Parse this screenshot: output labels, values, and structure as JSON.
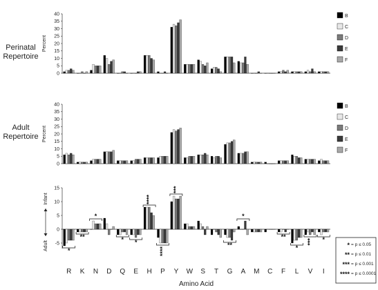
{
  "chart_data": [
    {
      "type": "bar",
      "title": "Perinatal Repertoire",
      "ylabel": "Percent",
      "ylim": [
        0,
        40
      ],
      "yticks": [
        0,
        5,
        10,
        15,
        20,
        25,
        30,
        35,
        40
      ],
      "categories": [
        "R",
        "K",
        "N",
        "D",
        "Q",
        "E",
        "H",
        "P",
        "Y",
        "W",
        "S",
        "T",
        "G",
        "A",
        "M",
        "C",
        "F",
        "L",
        "V",
        "I"
      ],
      "series": [
        {
          "name": "B",
          "color": "#000000",
          "values": [
            1,
            0,
            2,
            12,
            0,
            0,
            12,
            1,
            31,
            6,
            9,
            3,
            11,
            8,
            0,
            0,
            1,
            1,
            1,
            1
          ]
        },
        {
          "name": "C",
          "color": "#e8e8e8",
          "values": [
            2,
            0,
            6,
            10,
            0,
            0,
            12,
            0,
            33,
            6,
            8,
            4,
            11,
            7,
            0,
            0,
            1,
            1,
            2,
            1
          ]
        },
        {
          "name": "D",
          "color": "#7a7a7a",
          "values": [
            2,
            1,
            5,
            6,
            1,
            0,
            12,
            0,
            32,
            6,
            6,
            4,
            11,
            7,
            0,
            0,
            2,
            1,
            1,
            1
          ]
        },
        {
          "name": "E",
          "color": "#3a3a3a",
          "values": [
            3,
            0,
            5,
            8,
            1,
            1,
            10,
            1,
            34,
            6,
            5,
            3,
            11,
            11,
            1,
            0,
            1,
            1,
            3,
            1
          ]
        },
        {
          "name": "F",
          "color": "#a8a8a8",
          "values": [
            2,
            1,
            5,
            9,
            0,
            1,
            9,
            0,
            36,
            6,
            7,
            1,
            7,
            6,
            0,
            0,
            2,
            1,
            1,
            1
          ]
        }
      ]
    },
    {
      "type": "bar",
      "title": "Adult Repertoire",
      "ylabel": "Percent",
      "ylim": [
        0,
        40
      ],
      "yticks": [
        0,
        5,
        10,
        15,
        20,
        25,
        30,
        35,
        40
      ],
      "categories": [
        "R",
        "K",
        "N",
        "D",
        "Q",
        "E",
        "H",
        "P",
        "Y",
        "W",
        "S",
        "T",
        "G",
        "A",
        "M",
        "C",
        "F",
        "L",
        "V",
        "I"
      ],
      "series": [
        {
          "name": "B",
          "color": "#000000",
          "values": [
            6,
            1,
            2,
            8,
            2,
            2,
            4,
            4,
            21,
            4,
            6,
            5,
            13,
            7,
            1,
            1,
            2,
            6,
            3,
            2
          ]
        },
        {
          "name": "C",
          "color": "#e8e8e8",
          "values": [
            7,
            1,
            3,
            8,
            2,
            2,
            4,
            5,
            23,
            4,
            6,
            4,
            14,
            7,
            1,
            0,
            2,
            5,
            3,
            3
          ]
        },
        {
          "name": "D",
          "color": "#7a7a7a",
          "values": [
            6,
            1,
            3,
            8,
            2,
            3,
            4,
            5,
            22,
            5,
            6,
            5,
            14,
            7,
            1,
            0,
            2,
            5,
            3,
            2
          ]
        },
        {
          "name": "E",
          "color": "#3a3a3a",
          "values": [
            7,
            1,
            3,
            8,
            2,
            3,
            4,
            5,
            23,
            5,
            7,
            5,
            15,
            8,
            1,
            0,
            2,
            4,
            3,
            2
          ]
        },
        {
          "name": "F",
          "color": "#a8a8a8",
          "values": [
            6,
            1,
            3,
            9,
            2,
            3,
            4,
            5,
            24,
            5,
            6,
            4,
            16,
            8,
            1,
            0,
            2,
            4,
            3,
            2
          ]
        }
      ]
    },
    {
      "type": "bar",
      "ylabel_top": "Infant",
      "ylabel_bottom": "Adult",
      "ylim": [
        -10,
        15
      ],
      "yticks": [
        -5,
        0,
        5,
        10,
        15
      ],
      "xlabel": "Amino Acid",
      "categories": [
        "R",
        "K",
        "N",
        "D",
        "Q",
        "E",
        "H",
        "P",
        "Y",
        "W",
        "S",
        "T",
        "G",
        "A",
        "M",
        "C",
        "F",
        "L",
        "V",
        "I"
      ],
      "series": [
        {
          "name": "B",
          "color": "#000000",
          "values": [
            -6,
            -1,
            0,
            4,
            -2,
            -2,
            8,
            -3,
            10,
            2,
            3,
            -2,
            -2,
            1,
            -1,
            -1,
            -1,
            -5,
            -2,
            -1
          ]
        },
        {
          "name": "C",
          "color": "#e8e8e8",
          "values": [
            -5,
            -1,
            3,
            2,
            -2,
            -2,
            8,
            -5,
            12,
            2,
            2,
            0,
            -3,
            0,
            -1,
            0,
            -1,
            -4,
            -1,
            -2
          ]
        },
        {
          "name": "D",
          "color": "#7a7a7a",
          "values": [
            -4,
            -1,
            2,
            -2,
            -1,
            -3,
            8,
            -5,
            11,
            1,
            1,
            -1,
            -3,
            0,
            -1,
            0,
            0,
            -4,
            -2,
            -1
          ]
        },
        {
          "name": "E",
          "color": "#3a3a3a",
          "values": [
            -4,
            -1,
            2,
            0,
            -1,
            -2,
            6,
            -5,
            11,
            1,
            -2,
            -2,
            -4,
            3,
            -1,
            0,
            -1,
            -3,
            -1,
            -1
          ]
        },
        {
          "name": "F",
          "color": "#a8a8a8",
          "values": [
            -4,
            -1,
            2,
            1,
            -2,
            -2,
            5,
            -5,
            12,
            1,
            1,
            -3,
            -1,
            -2,
            -1,
            0,
            0,
            -3,
            -2,
            -1
          ]
        }
      ],
      "significance": [
        {
          "category": "R",
          "stars": "*",
          "direction": "down"
        },
        {
          "category": "K",
          "stars": "**",
          "direction": "down"
        },
        {
          "category": "N",
          "stars": "*",
          "direction": "up"
        },
        {
          "category": "Q",
          "stars": "*",
          "direction": "down"
        },
        {
          "category": "E",
          "stars": "*",
          "direction": "down"
        },
        {
          "category": "H",
          "stars": "****",
          "direction": "up"
        },
        {
          "category": "P",
          "stars": "****",
          "direction": "down"
        },
        {
          "category": "Y",
          "stars": "***",
          "direction": "up"
        },
        {
          "category": "G",
          "stars": "**",
          "direction": "down"
        },
        {
          "category": "A",
          "stars": "*",
          "direction": "up"
        },
        {
          "category": "F",
          "stars": "**",
          "direction": "down"
        },
        {
          "category": "L",
          "stars": "*",
          "direction": "down"
        },
        {
          "category": "V",
          "stars": "***",
          "direction": "down"
        },
        {
          "category": "I",
          "stars": "*",
          "direction": "down"
        }
      ]
    }
  ],
  "significance_legend": [
    {
      "stars": "*",
      "text": "= p ≤ 0.05"
    },
    {
      "stars": "**",
      "text": "= p ≤ 0.01"
    },
    {
      "stars": "***",
      "text": "= p ≤ 0.001"
    },
    {
      "stars": "****",
      "text": "= p ≤ 0.0001"
    }
  ]
}
